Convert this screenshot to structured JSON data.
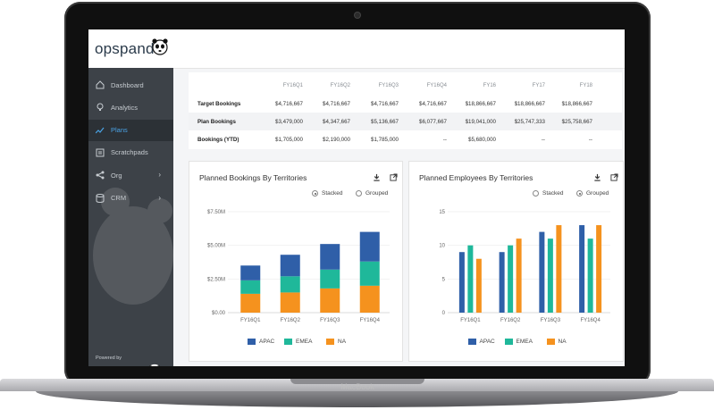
{
  "device": {
    "brand": "MacBook"
  },
  "app": {
    "logo_text": "opspanda"
  },
  "sidebar": {
    "items": [
      {
        "label": "Dashboard",
        "icon": "home-icon",
        "chevron": false
      },
      {
        "label": "Analytics",
        "icon": "lightbulb-icon",
        "chevron": false
      },
      {
        "label": "Plans",
        "icon": "trend-icon",
        "chevron": false,
        "active": true
      },
      {
        "label": "Scratchpads",
        "icon": "scratchpad-icon",
        "chevron": false
      },
      {
        "label": "Org",
        "icon": "org-icon",
        "chevron": true
      },
      {
        "label": "CRM",
        "icon": "database-icon",
        "chevron": true
      }
    ],
    "powered_by": "Powered by",
    "powered_logo": "opspanda",
    "collapse_label": "|<"
  },
  "table": {
    "columns": [
      "FY16Q1",
      "FY16Q2",
      "FY16Q3",
      "FY16Q4",
      "FY16",
      "FY17",
      "FY18"
    ],
    "rows": [
      {
        "label": "Target Bookings",
        "values": [
          "$4,716,667",
          "$4,716,667",
          "$4,716,667",
          "$4,716,667",
          "$18,866,667",
          "$18,866,667",
          "$18,866,667"
        ]
      },
      {
        "label": "Plan Bookings",
        "values": [
          "$3,479,000",
          "$4,347,667",
          "$5,136,667",
          "$6,077,667",
          "$19,041,000",
          "$25,747,333",
          "$25,758,667"
        ]
      },
      {
        "label": "Bookings (YTD)",
        "values": [
          "$1,705,000",
          "$2,190,000",
          "$1,785,000",
          "--",
          "$5,680,000",
          "--",
          "--"
        ]
      }
    ]
  },
  "colors": {
    "apac": "#2f5fa8",
    "emea": "#1fb89a",
    "na": "#f5921e",
    "active": "#4aa3e6"
  },
  "chart_data": [
    {
      "type": "bar",
      "stacked": true,
      "title": "Planned Bookings By Territories",
      "mode_options": [
        "Stacked",
        "Grouped"
      ],
      "selected_mode": "Stacked",
      "categories": [
        "FY16Q1",
        "FY16Q2",
        "FY16Q3",
        "FY16Q4"
      ],
      "series": [
        {
          "name": "APAC",
          "values": [
            1.1,
            1.6,
            1.9,
            2.2
          ]
        },
        {
          "name": "EMEA",
          "values": [
            1.0,
            1.2,
            1.4,
            1.8
          ]
        },
        {
          "name": "NA",
          "values": [
            1.4,
            1.5,
            1.8,
            2.0
          ]
        }
      ],
      "y_ticks": [
        "$0.00",
        "$2.50M",
        "$5.00M",
        "$7.50M"
      ],
      "ylim": [
        0,
        7.5
      ],
      "y_unit": "$M"
    },
    {
      "type": "bar",
      "stacked": false,
      "title": "Planned Employees By Territories",
      "mode_options": [
        "Stacked",
        "Grouped"
      ],
      "selected_mode": "Grouped",
      "categories": [
        "FY16Q1",
        "FY16Q2",
        "FY16Q3",
        "FY16Q4"
      ],
      "series": [
        {
          "name": "APAC",
          "values": [
            9,
            9,
            12,
            13
          ]
        },
        {
          "name": "EMEA",
          "values": [
            10,
            10,
            11,
            11
          ]
        },
        {
          "name": "NA",
          "values": [
            8,
            11,
            13,
            13
          ]
        }
      ],
      "y_ticks": [
        "0",
        "5",
        "10",
        "15"
      ],
      "ylim": [
        0,
        15
      ]
    }
  ]
}
